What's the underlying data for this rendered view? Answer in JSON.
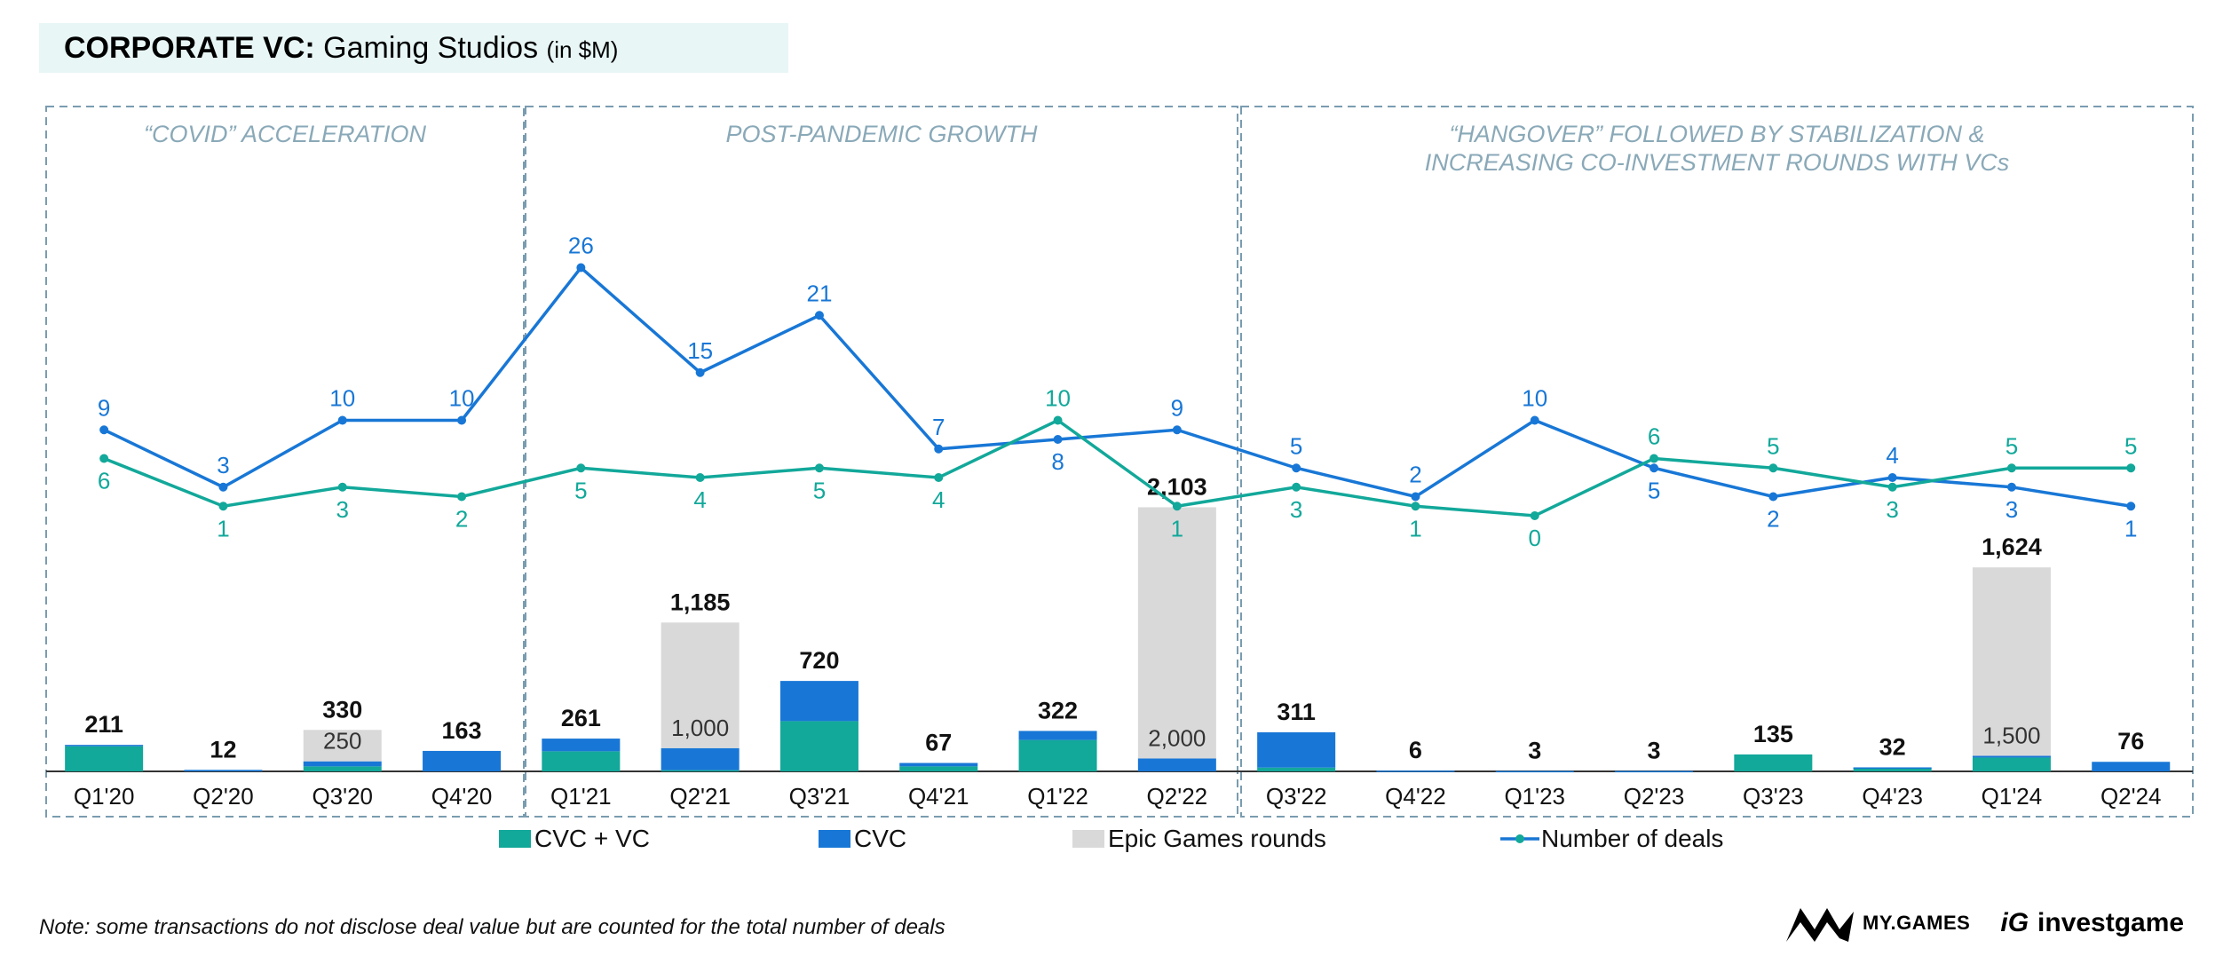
{
  "title": {
    "main": "CORPORATE VC:",
    "sub": "Gaming Studios",
    "unit": "(in $M)"
  },
  "note": "Note: some transactions do not disclose deal value but are counted for the total number of deals",
  "logos": {
    "mygames": "MY.GAMES",
    "ig": "iG",
    "investgame": "investgame"
  },
  "colors": {
    "cvc_vc": "#12a89a",
    "cvc": "#1877d6",
    "epic": "#d9d9d9",
    "line_total": "#1877d6",
    "line_cvcvc": "#12a89a",
    "period_border": "#7a9cb0",
    "period_text": "#8aa9b8"
  },
  "periods": [
    {
      "label": [
        "“COVID” ACCELERATION"
      ],
      "from": 0,
      "to": 3
    },
    {
      "label": [
        "POST-PANDEMIC GROWTH"
      ],
      "from": 4,
      "to": 9
    },
    {
      "label": [
        "“HANGOVER” FOLLOWED BY STABILIZATION &",
        "INCREASING CO-INVESTMENT ROUNDS WITH VCs"
      ],
      "from": 10,
      "to": 17
    }
  ],
  "chart_data": {
    "type": "bar",
    "categories": [
      "Q1'20",
      "Q2'20",
      "Q3'20",
      "Q4'20",
      "Q1'21",
      "Q2'21",
      "Q3'21",
      "Q4'21",
      "Q1'22",
      "Q2'22",
      "Q3'22",
      "Q4'22",
      "Q1'23",
      "Q2'23",
      "Q3'23",
      "Q4'23",
      "Q1'24",
      "Q2'24"
    ],
    "series": [
      {
        "name": "CVC + VC",
        "values": [
          200,
          0,
          40,
          0,
          160,
          10,
          400,
          40,
          250,
          0,
          30,
          0,
          0,
          0,
          135,
          30,
          110,
          0
        ]
      },
      {
        "name": "CVC",
        "values": [
          11,
          12,
          40,
          163,
          101,
          175,
          320,
          27,
          72,
          103,
          281,
          6,
          3,
          3,
          0,
          2,
          14,
          76
        ]
      },
      {
        "name": "Epic Games rounds",
        "values": [
          0,
          0,
          250,
          0,
          0,
          1000,
          0,
          0,
          0,
          2000,
          0,
          0,
          0,
          0,
          0,
          0,
          1500,
          0
        ]
      }
    ],
    "totals": [
      "211",
      "12",
      "330",
      "163",
      "261",
      "1,185",
      "720",
      "67",
      "322",
      "2,103",
      "311",
      "6",
      "3",
      "3",
      "135",
      "32",
      "1,624",
      "76"
    ],
    "epic_labels": [
      "",
      "",
      "250",
      "",
      "",
      "1,000",
      "",
      "",
      "",
      "2,000",
      "",
      "",
      "",
      "",
      "",
      "",
      "1,500",
      ""
    ],
    "lines": [
      {
        "name": "Number of deals",
        "values": [
          9,
          3,
          10,
          10,
          26,
          15,
          21,
          7,
          8,
          9,
          5,
          2,
          10,
          5,
          2,
          4,
          3,
          1
        ]
      },
      {
        "name": "",
        "values": [
          6,
          1,
          3,
          2,
          5,
          4,
          5,
          4,
          10,
          1,
          3,
          1,
          0,
          6,
          5,
          3,
          5,
          5
        ]
      }
    ],
    "legend": [
      "CVC + VC",
      "CVC",
      "Epic Games rounds",
      "Number of deals"
    ],
    "legend_position": "bottom"
  }
}
